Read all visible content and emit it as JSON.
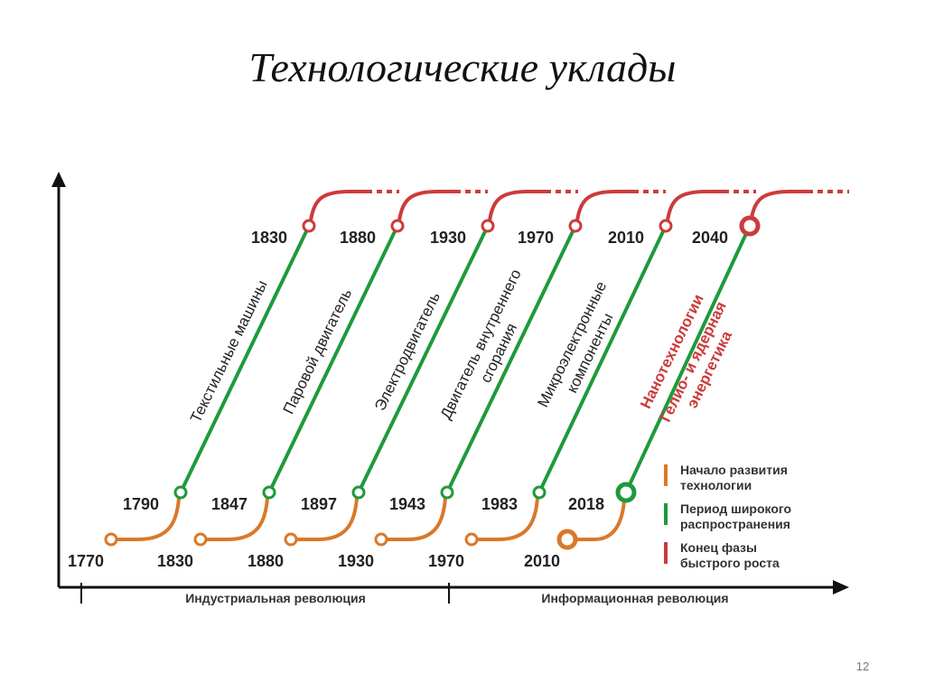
{
  "title": "Технологические уклады",
  "waves": [
    {
      "start_year": "1770",
      "spread_year": "1790",
      "end_year": "1830",
      "label": [
        "Текстильные машины"
      ]
    },
    {
      "start_year": "1830",
      "spread_year": "1847",
      "end_year": "1880",
      "label": [
        "Паровой двигатель"
      ]
    },
    {
      "start_year": "1880",
      "spread_year": "1897",
      "end_year": "1930",
      "label": [
        "Электродвигатель"
      ]
    },
    {
      "start_year": "1930",
      "spread_year": "1943",
      "end_year": "1970",
      "label": [
        "Двигатель внутреннего",
        "сгорания"
      ]
    },
    {
      "start_year": "1970",
      "spread_year": "1983",
      "end_year": "2010",
      "label": [
        "Микроэлектронные",
        "компоненты"
      ]
    },
    {
      "start_year": "2010",
      "spread_year": "2018",
      "end_year": "2040",
      "label": [
        "Нанотехнологии",
        "Гелио- и ядерная",
        "энергетика"
      ]
    }
  ],
  "legend": [
    {
      "label": [
        "Начало развития",
        "технологии"
      ]
    },
    {
      "label": [
        "Период широкого",
        "распространения"
      ]
    },
    {
      "label": [
        "Конец фазы",
        "быстрого роста"
      ]
    }
  ],
  "revolutions": [
    "Индустриальная революция",
    "Информационная революция"
  ],
  "page_number": "12"
}
